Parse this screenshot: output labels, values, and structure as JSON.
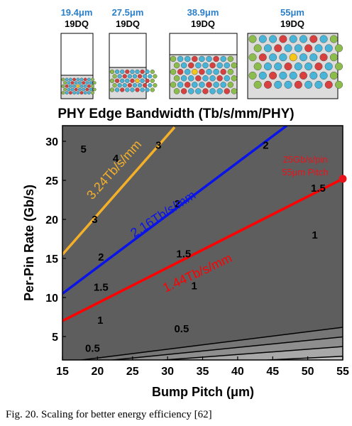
{
  "caption": "Fig. 20. Scaling for better energy efficiency [62]",
  "chart_data": {
    "type": "contour",
    "title": "PHY Edge Bandwidth (Tb/s/mm/PHY)",
    "xlabel": "Bump Pitch (μm)",
    "ylabel": "Per-Pin Rate (Gb/s)",
    "xlim": [
      15,
      55
    ],
    "ylim": [
      2,
      32
    ],
    "xticks": [
      15,
      20,
      25,
      30,
      35,
      40,
      45,
      50,
      55
    ],
    "yticks": [
      5,
      10,
      15,
      20,
      25,
      30
    ],
    "contour_levels": [
      0.5,
      1,
      1.5,
      2,
      3,
      4,
      5
    ],
    "contour_labels": [
      {
        "text": "5",
        "x": 18,
        "y": 29
      },
      {
        "text": "4",
        "x": 22.6,
        "y": 27.8
      },
      {
        "text": "3",
        "x": 28.7,
        "y": 29.5
      },
      {
        "text": "3",
        "x": 19.6,
        "y": 20
      },
      {
        "text": "2",
        "x": 44,
        "y": 29.5
      },
      {
        "text": "2",
        "x": 31.4,
        "y": 22
      },
      {
        "text": "2",
        "x": 20.5,
        "y": 15.2
      },
      {
        "text": "1.5",
        "x": 51.5,
        "y": 24
      },
      {
        "text": "1.5",
        "x": 32.3,
        "y": 15.6
      },
      {
        "text": "1.5",
        "x": 20.5,
        "y": 11.3
      },
      {
        "text": "1",
        "x": 51,
        "y": 18
      },
      {
        "text": "1",
        "x": 33.8,
        "y": 11.5
      },
      {
        "text": "1",
        "x": 20.4,
        "y": 7.1
      },
      {
        "text": "0.5",
        "x": 32,
        "y": 6
      },
      {
        "text": "0.5",
        "x": 19.3,
        "y": 3.5
      }
    ],
    "series": [
      {
        "name": "3.24Tb/s/mm",
        "color": "#f5b02a",
        "x": [
          15,
          31
        ],
        "y": [
          15.5,
          31.8
        ]
      },
      {
        "name": "2.16Tb/s/mm",
        "color": "#0a14e8",
        "x": [
          15,
          47
        ],
        "y": [
          10.5,
          32
        ]
      },
      {
        "name": "1.44Tb/s/mm",
        "color": "#ff0000",
        "x": [
          15,
          55
        ],
        "y": [
          7,
          25.2
        ]
      }
    ],
    "marker": {
      "x": 55,
      "y": 25.2,
      "color": "#e8141b"
    },
    "annotation": [
      "25Gb/s/pin",
      "55μm Pitch"
    ]
  },
  "bump_maps": [
    {
      "pitch": "19.4μm",
      "dq": "19DQ"
    },
    {
      "pitch": "27.5μm",
      "dq": "19DQ"
    },
    {
      "pitch": "38.9μm",
      "dq": "19DQ"
    },
    {
      "pitch": "55μm",
      "dq": "19DQ"
    }
  ],
  "colors": {
    "bump_blue": "#48b4d8",
    "bump_red": "#d84040",
    "bump_green": "#8cbc4c",
    "bump_yellow": "#f5c518",
    "box_fill": "#dcdcdc"
  }
}
